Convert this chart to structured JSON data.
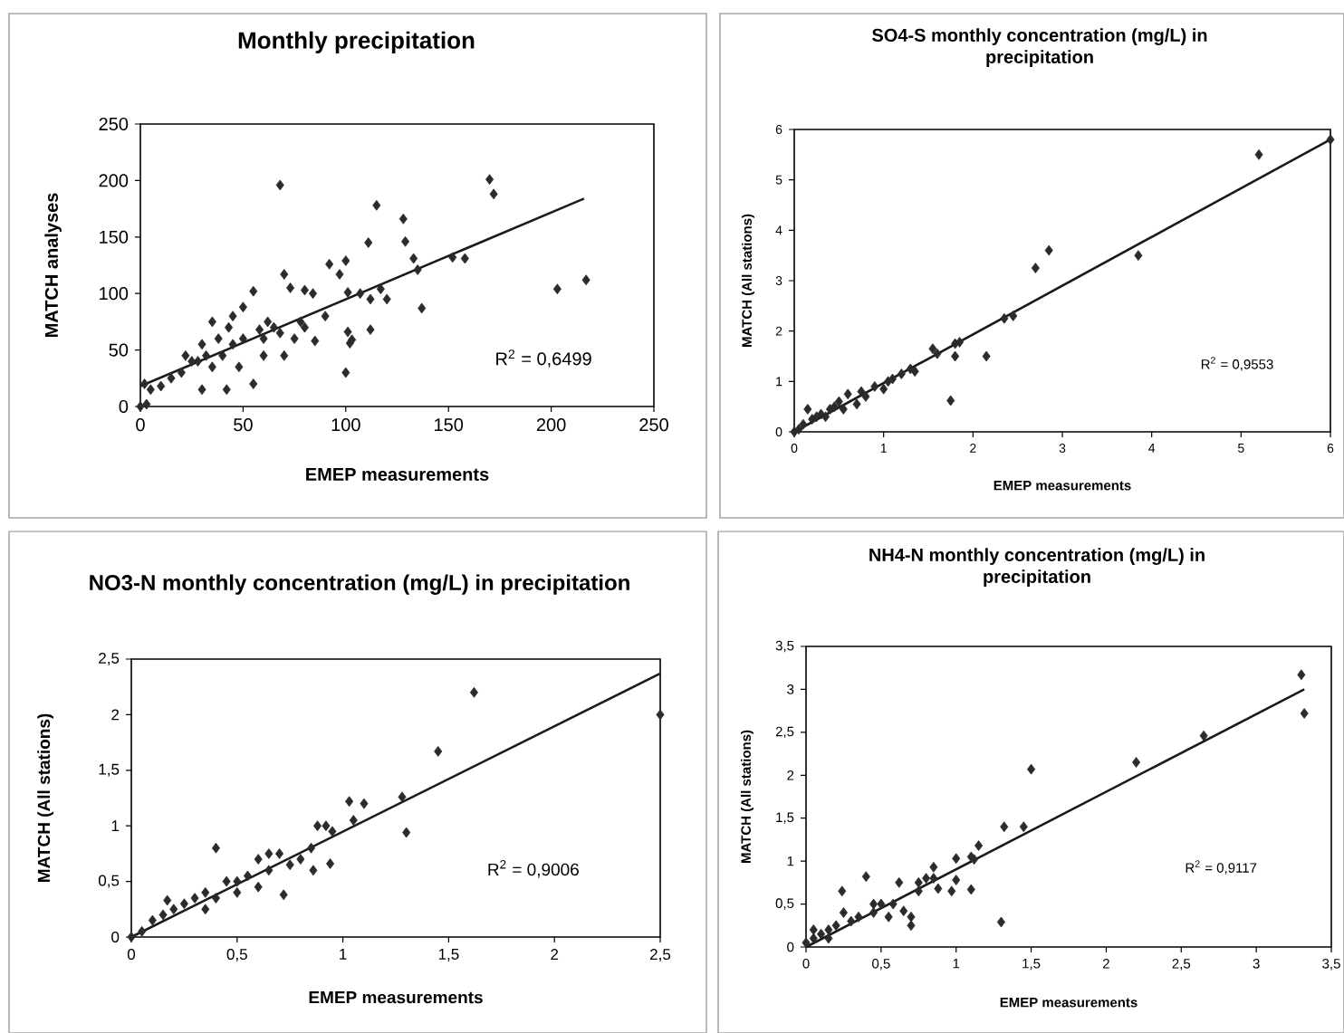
{
  "chart_data": [
    {
      "type": "scatter",
      "title": "Monthly precipitation",
      "xlabel": "EMEP measurements",
      "ylabel": "MATCH analyses",
      "xlim": [
        0,
        250
      ],
      "ylim": [
        0,
        250
      ],
      "xticks": [
        0,
        50,
        100,
        150,
        200,
        250
      ],
      "yticks": [
        0,
        50,
        100,
        150,
        200,
        250
      ],
      "annotations": [
        "R$^{2}$ = 0,6499"
      ],
      "series": [
        {
          "marker": "diamond",
          "color": "#2b2b2b",
          "x": [
            68,
            170,
            172,
            115,
            128,
            129,
            111,
            133,
            152,
            158,
            203,
            217,
            135,
            137,
            100,
            92,
            97,
            70,
            73,
            80,
            84,
            101,
            107,
            117,
            112,
            101,
            102,
            103,
            100,
            120,
            112,
            55,
            50,
            45,
            35,
            58,
            38,
            30,
            43,
            65,
            78,
            90,
            60,
            40,
            25,
            20,
            15,
            10,
            5,
            2,
            0,
            3,
            30,
            42,
            55,
            48,
            35,
            60,
            70,
            85,
            75,
            22,
            28,
            32,
            45,
            50,
            62,
            68,
            80
          ],
          "values": [
            196,
            201,
            188,
            178,
            166,
            146,
            145,
            131,
            132,
            131,
            104,
            112,
            121,
            87,
            129,
            126,
            117,
            117,
            105,
            103,
            100,
            101,
            100,
            104,
            68,
            66,
            56,
            59,
            30,
            95,
            95,
            102,
            88,
            80,
            75,
            68,
            60,
            55,
            70,
            70,
            75,
            80,
            60,
            45,
            40,
            30,
            25,
            18,
            15,
            20,
            0,
            2,
            15,
            15,
            20,
            35,
            35,
            45,
            45,
            58,
            60,
            45,
            40,
            45,
            55,
            60,
            75,
            65,
            70
          ]
        },
        {
          "type": "line",
          "marker": "none",
          "color": "#1a1a1a",
          "x": [
            0,
            216
          ],
          "values": [
            18,
            184
          ]
        }
      ]
    },
    {
      "type": "scatter",
      "title": "SO4-S monthly concentration (mg/L) in precipitation",
      "xlabel": "EMEP measurements",
      "ylabel": "MATCH (All stations)",
      "xlim": [
        0,
        6
      ],
      "ylim": [
        0,
        6
      ],
      "xticks": [
        0,
        1,
        2,
        3,
        4,
        5,
        6
      ],
      "yticks": [
        0,
        1,
        2,
        3,
        4,
        5,
        6
      ],
      "annotations": [
        "R$^{2}$ = 0,9553"
      ],
      "series": [
        {
          "marker": "diamond",
          "color": "#2b2b2b",
          "x": [
            6,
            5.2,
            2.85,
            2.7,
            3.85,
            2.35,
            2.45,
            1.8,
            1.85,
            1.55,
            1.6,
            1.8,
            2.15,
            1.75,
            1.3,
            1.2,
            1.05,
            1.0,
            0.8,
            0.75,
            0.6,
            0.5,
            0.45,
            0.4,
            0.3,
            0.2,
            0.15,
            0.1,
            0,
            0.05,
            0.9,
            0.7,
            1.1,
            0.35,
            0.25,
            0.55,
            1.35
          ],
          "values": [
            5.8,
            5.5,
            3.6,
            3.25,
            3.5,
            2.25,
            2.3,
            1.75,
            1.78,
            1.65,
            1.55,
            1.5,
            1.5,
            0.62,
            1.25,
            1.15,
            1.0,
            0.85,
            0.7,
            0.8,
            0.75,
            0.6,
            0.5,
            0.45,
            0.35,
            0.25,
            0.45,
            0.15,
            0,
            0.05,
            0.9,
            0.55,
            1.05,
            0.3,
            0.3,
            0.45,
            1.2
          ]
        },
        {
          "type": "line",
          "color": "#1a1a1a",
          "x": [
            0,
            6
          ],
          "values": [
            0,
            5.8
          ]
        }
      ]
    },
    {
      "type": "scatter",
      "title": "NO3-N monthly concentration (mg/L) in precipitation",
      "xlabel": "EMEP measurements",
      "ylabel": "MATCH (All stations)",
      "xlim": [
        0,
        2.5
      ],
      "ylim": [
        0,
        2.5
      ],
      "xticks": [
        0,
        {
          "value": 0.5,
          "label": "0,5"
        },
        1,
        {
          "value": 1.5,
          "label": "1,5"
        },
        2,
        {
          "value": 2.5,
          "label": "2,5"
        }
      ],
      "yticks": [
        0,
        {
          "value": 0.5,
          "label": "0,5"
        },
        1,
        {
          "value": 1.5,
          "label": "1,5"
        },
        2,
        {
          "value": 2.5,
          "label": "2,5"
        }
      ],
      "annotations": [
        "R$^{2}$ = 0,9006"
      ],
      "series": [
        {
          "marker": "diamond",
          "color": "#2b2b2b",
          "x": [
            2.5,
            1.62,
            1.45,
            1.28,
            1.3,
            1.03,
            1.1,
            1.05,
            0.88,
            0.92,
            0.95,
            0.85,
            0.86,
            0.94,
            0.4,
            0.72,
            0.6,
            0.65,
            0.7,
            0.5,
            0.45,
            0.55,
            0.35,
            0.3,
            0.25,
            0.2,
            0.15,
            0.1,
            0.17,
            0.05,
            0,
            0.6,
            0.75,
            0.4,
            0.35,
            0.8,
            0.5,
            0.65
          ],
          "values": [
            2.0,
            2.2,
            1.67,
            1.26,
            0.94,
            1.22,
            1.2,
            1.05,
            1.0,
            1.0,
            0.95,
            0.8,
            0.6,
            0.66,
            0.8,
            0.38,
            0.7,
            0.75,
            0.75,
            0.5,
            0.5,
            0.55,
            0.4,
            0.35,
            0.3,
            0.25,
            0.2,
            0.15,
            0.33,
            0.05,
            0,
            0.45,
            0.65,
            0.35,
            0.25,
            0.7,
            0.4,
            0.6
          ]
        },
        {
          "type": "line",
          "marker": "none",
          "color": "#1a1a1a",
          "x": [
            0,
            2.5
          ],
          "values": [
            0,
            2.37
          ]
        }
      ]
    },
    {
      "type": "scatter",
      "title": "NH4-N monthly concentration (mg/L) in precipitation",
      "xlabel": "EMEP measurements",
      "ylabel": "MATCH (All stations)",
      "xlim": [
        0,
        3.5
      ],
      "ylim": [
        0,
        3.5
      ],
      "xticks": [
        0,
        {
          "value": 0.5,
          "label": "0,5"
        },
        1,
        {
          "value": 1.5,
          "label": "1,5"
        },
        2,
        {
          "value": 2.5,
          "label": "2,5"
        },
        3,
        {
          "value": 3.5,
          "label": "3,5"
        }
      ],
      "yticks": [
        0,
        {
          "value": 0.5,
          "label": "0,5"
        },
        1,
        {
          "value": 1.5,
          "label": "1,5"
        },
        2,
        {
          "value": 2.5,
          "label": "2,5"
        },
        3,
        {
          "value": 3.5,
          "label": "3,5"
        }
      ],
      "annotations": [
        "R$^{2}$ = 0,9117"
      ],
      "series": [
        {
          "marker": "diamond",
          "color": "#2b2b2b",
          "x": [
            3.3,
            3.32,
            2.65,
            2.2,
            1.5,
            1.45,
            1.32,
            1.15,
            1.1,
            1.12,
            1.0,
            1.0,
            0.97,
            1.1,
            0.88,
            0.85,
            0.8,
            0.75,
            1.3,
            0.7,
            0.65,
            0.58,
            0.62,
            0.5,
            0.45,
            0.4,
            0.24,
            0.35,
            0.3,
            0.2,
            0.15,
            0.1,
            0.05,
            0,
            0.05,
            0.7,
            0.55,
            0.45,
            0.25,
            0.15,
            0.85,
            0.75
          ],
          "values": [
            3.17,
            2.72,
            2.46,
            2.15,
            2.07,
            1.4,
            1.4,
            1.18,
            1.05,
            1.02,
            1.03,
            0.78,
            0.65,
            0.67,
            0.68,
            0.93,
            0.8,
            0.75,
            0.29,
            0.35,
            0.42,
            0.5,
            0.75,
            0.5,
            0.5,
            0.82,
            0.65,
            0.35,
            0.3,
            0.25,
            0.2,
            0.15,
            0.1,
            0.05,
            0.2,
            0.25,
            0.35,
            0.4,
            0.4,
            0.1,
            0.8,
            0.65
          ]
        },
        {
          "type": "line",
          "marker": "none",
          "color": "#1a1a1a",
          "x": [
            0,
            3.32
          ],
          "values": [
            0,
            3.0
          ]
        }
      ]
    }
  ]
}
